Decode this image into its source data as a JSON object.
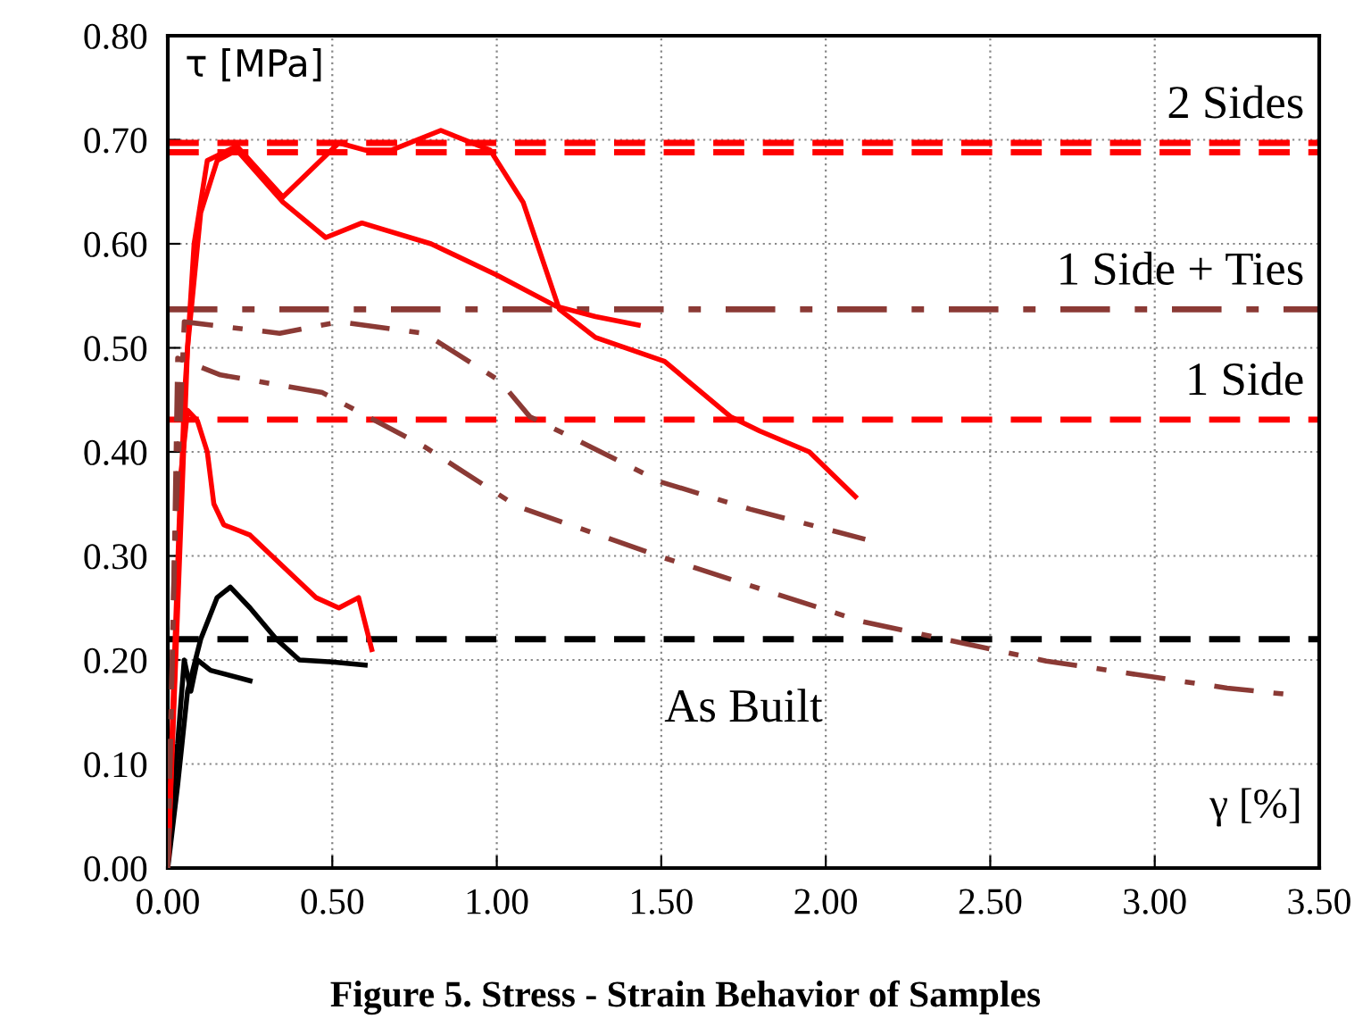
{
  "chart_data": {
    "type": "line",
    "title": "Figure 5. Stress - Strain Behavior of Samples",
    "xlabel": "γ [%]",
    "ylabel": "τ [MPa]",
    "xlim": [
      0,
      3.5
    ],
    "xticks": [
      {
        "value": 0,
        "label": "0.00"
      },
      {
        "value": 0.5,
        "label": "0.50"
      },
      {
        "value": 1,
        "label": "1.00"
      },
      {
        "value": 1.5,
        "label": "1.50"
      },
      {
        "value": 2,
        "label": "2.00"
      },
      {
        "value": 2.5,
        "label": "2.50"
      },
      {
        "value": 3,
        "label": "3.00"
      },
      {
        "value": 3.5,
        "label": "3.50"
      }
    ],
    "ylim": [
      0,
      0.8
    ],
    "yticks": [
      {
        "value": 0,
        "label": "0.00"
      },
      {
        "value": 0.1,
        "label": "0.10"
      },
      {
        "value": 0.2,
        "label": "0.20"
      },
      {
        "value": 0.3,
        "label": "0.30"
      },
      {
        "value": 0.4,
        "label": "0.40"
      },
      {
        "value": 0.5,
        "label": "0.50"
      },
      {
        "value": 0.6,
        "label": "0.60"
      },
      {
        "value": 0.7,
        "label": "0.70"
      },
      {
        "value": 0.8,
        "label": "0.80"
      }
    ],
    "grid": true,
    "legend": false,
    "marker": "none",
    "series": [
      {
        "color": "#000000",
        "line_style": "solid",
        "x": [
          0,
          0.03,
          0.06,
          0.1,
          0.15,
          0.19,
          0.25,
          0.33,
          0.4,
          0.5,
          0.6
        ],
        "values": [
          0,
          0.08,
          0.17,
          0.22,
          0.26,
          0.27,
          0.25,
          0.22,
          0.2,
          0.198,
          0.195
        ]
      },
      {
        "color": "#000000",
        "line_style": "solid",
        "x": [
          0,
          0.03,
          0.05,
          0.07,
          0.09,
          0.13,
          0.25
        ],
        "values": [
          0.03,
          0.12,
          0.2,
          0.17,
          0.2,
          0.19,
          0.18
        ]
      },
      {
        "color": "#ff0000",
        "line_style": "solid",
        "x": [
          0,
          0.02,
          0.04,
          0.06,
          0.09,
          0.12,
          0.14,
          0.17,
          0.25,
          0.35,
          0.45,
          0.52,
          0.58,
          0.62
        ],
        "values": [
          0,
          0.2,
          0.38,
          0.44,
          0.43,
          0.4,
          0.35,
          0.33,
          0.32,
          0.29,
          0.26,
          0.25,
          0.26,
          0.21
        ]
      },
      {
        "color": "#ff0000",
        "line_style": "solid",
        "x": [
          0,
          0.05,
          0.08,
          0.12,
          0.21,
          0.35,
          0.52,
          0.6,
          0.68,
          0.83,
          0.98,
          1.08,
          1.19,
          1.3,
          1.51,
          1.71,
          1.8,
          1.95,
          2.09
        ],
        "values": [
          0,
          0.45,
          0.6,
          0.68,
          0.694,
          0.645,
          0.697,
          0.69,
          0.69,
          0.709,
          0.69,
          0.64,
          0.537,
          0.51,
          0.487,
          0.434,
          0.42,
          0.4,
          0.357
        ]
      },
      {
        "color": "#ff0000",
        "line_style": "solid",
        "x": [
          0,
          0.06,
          0.1,
          0.15,
          0.21,
          0.35,
          0.48,
          0.59,
          0.8,
          1.0,
          1.18,
          1.3,
          1.43
        ],
        "values": [
          0,
          0.5,
          0.63,
          0.68,
          0.69,
          0.64,
          0.606,
          0.62,
          0.6,
          0.57,
          0.54,
          0.53,
          0.522
        ]
      },
      {
        "color": "#8b3a35",
        "line_style": "dashdot",
        "x": [
          0,
          0.02,
          0.05,
          0.34,
          0.52,
          0.78,
          1.01,
          1.1,
          1.5,
          1.77,
          2.12
        ],
        "values": [
          0,
          0.3,
          0.525,
          0.514,
          0.525,
          0.514,
          0.468,
          0.434,
          0.371,
          0.345,
          0.316
        ]
      },
      {
        "color": "#8b3a35",
        "line_style": "dashdot",
        "x": [
          0,
          0.02,
          0.03,
          0.16,
          0.47,
          0.78,
          1.06,
          1.5,
          2.11,
          2.67,
          3.22,
          3.4
        ],
        "values": [
          0,
          0.3,
          0.49,
          0.474,
          0.457,
          0.405,
          0.348,
          0.299,
          0.237,
          0.199,
          0.173,
          0.167
        ]
      }
    ],
    "ref_lines": [
      {
        "axis": "y",
        "value": 0.697,
        "label": "2 Sides",
        "color": "#ff0000",
        "line_style": "dashed"
      },
      {
        "axis": "y",
        "value": 0.688,
        "color": "#ff0000",
        "line_style": "dashed"
      },
      {
        "axis": "y",
        "value": 0.537,
        "label": "1 Side + Ties",
        "color": "#8b3a35",
        "line_style": "dashdot"
      },
      {
        "axis": "y",
        "value": 0.431,
        "label": "1 Side",
        "color": "#ff0000",
        "line_style": "dashed"
      },
      {
        "axis": "y",
        "value": 0.22,
        "label": "As Built",
        "color": "#000000",
        "line_style": "dashed"
      }
    ]
  }
}
